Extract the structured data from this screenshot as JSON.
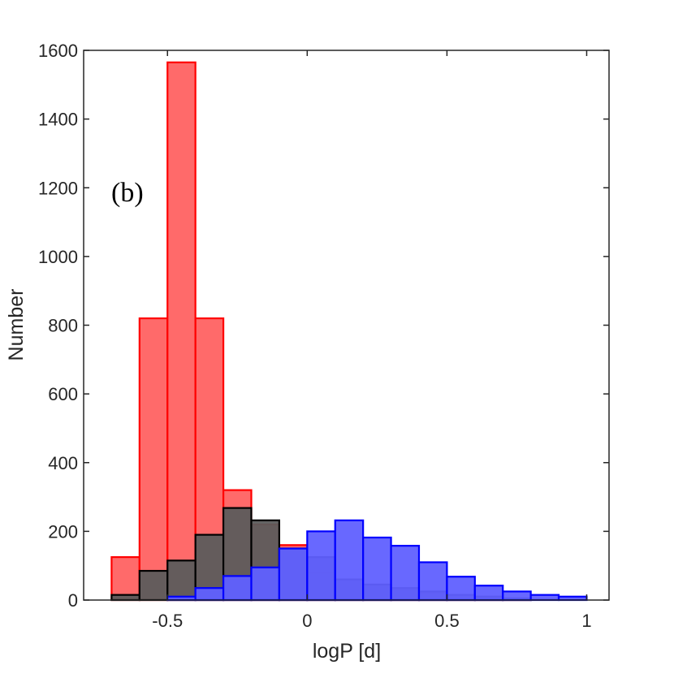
{
  "panel_label": "(b)",
  "chart_data": {
    "type": "bar",
    "title": "",
    "xlabel": "logP [d]",
    "ylabel": "Number",
    "xlim": [
      -0.8,
      1.08
    ],
    "ylim": [
      0,
      1600
    ],
    "xticks": [
      -0.5,
      0,
      0.5,
      1
    ],
    "xtick_labels": [
      "-0.5",
      "0",
      "0.5",
      "1"
    ],
    "yticks": [
      0,
      200,
      400,
      600,
      800,
      1000,
      1200,
      1400,
      1600
    ],
    "ytick_labels": [
      "0",
      "200",
      "400",
      "600",
      "800",
      "1000",
      "1200",
      "1400",
      "1600"
    ],
    "grid": false,
    "legend": "none",
    "overlay": true,
    "bin_edges": [
      -0.7,
      -0.6,
      -0.5,
      -0.4,
      -0.3,
      -0.2,
      -0.1,
      0.0,
      0.1,
      0.2,
      0.3,
      0.4,
      0.5,
      0.6,
      0.7,
      0.8,
      0.9,
      1.0
    ],
    "series": [
      {
        "color": "#ff0000",
        "fill": "#ff6262",
        "values": [
          125,
          820,
          1565,
          820,
          320,
          220,
          160,
          80,
          60,
          45,
          30,
          20,
          15,
          10,
          5,
          0,
          0
        ]
      },
      {
        "color": "#000000",
        "fill": "#5c5c5c",
        "values": [
          15,
          85,
          115,
          190,
          268,
          232,
          150,
          125,
          60,
          45,
          35,
          25,
          15,
          10,
          5,
          0,
          0
        ]
      },
      {
        "color": "#0000ff",
        "fill": "#6060ff",
        "values": [
          0,
          0,
          10,
          35,
          70,
          95,
          150,
          200,
          232,
          182,
          158,
          110,
          68,
          42,
          25,
          15,
          10
        ]
      }
    ]
  }
}
